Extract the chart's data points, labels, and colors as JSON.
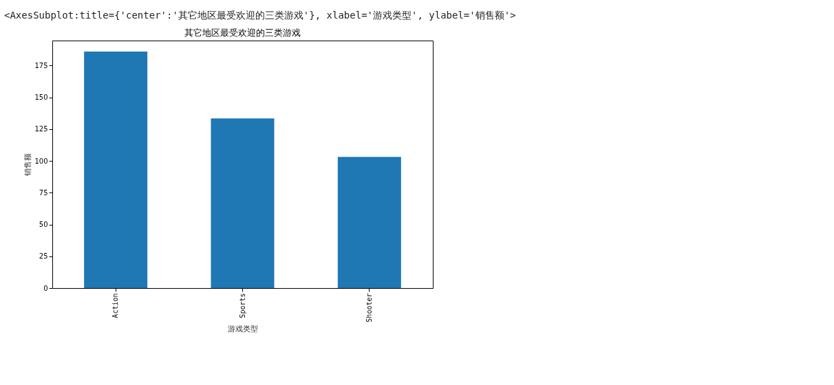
{
  "chart_data": {
    "type": "bar",
    "title": "其它地区最受欢迎的三类游戏",
    "xlabel": "游戏类型",
    "ylabel": "销售额",
    "categories": [
      "Action",
      "Sports",
      "Shooter"
    ],
    "values": [
      186,
      133.4,
      103.1
    ],
    "color": "#1f77b4",
    "ylim": [
      0,
      194.7
    ],
    "yticks": [
      0,
      25,
      50,
      75,
      100,
      125,
      150,
      175
    ],
    "grid": false,
    "annotations": [
      "<AxesSubplot:title={'center':'其它地区最受欢迎的三类游戏'}, xlabel='游戏类型', ylabel='销售额'>"
    ]
  }
}
